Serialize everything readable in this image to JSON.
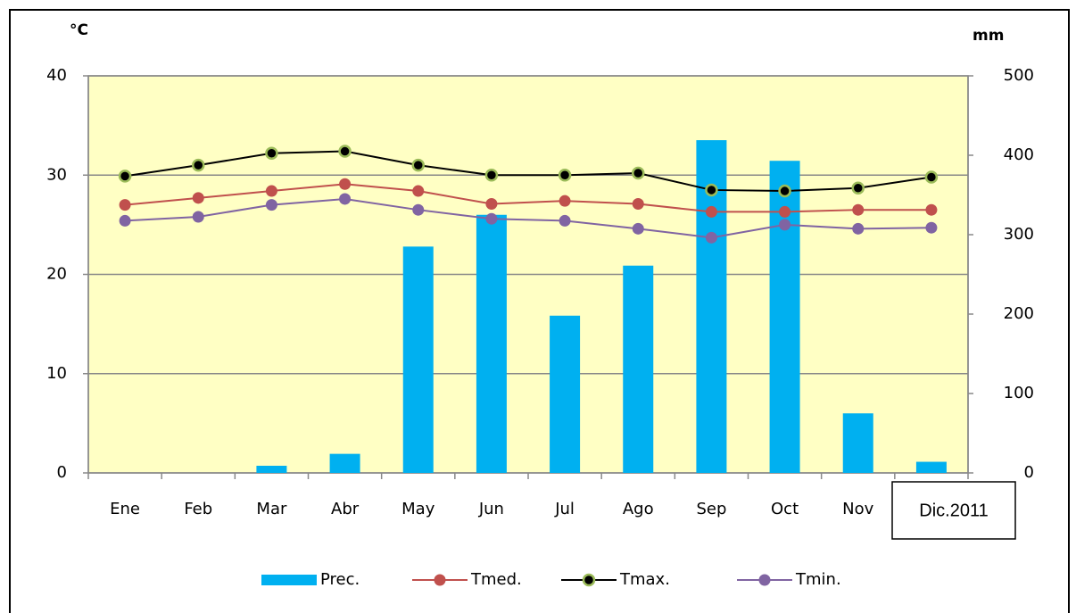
{
  "chart_data": {
    "type": "bar_line",
    "y_label": "°C",
    "y2_label": "mm",
    "categories": [
      "Ene",
      "Feb",
      "Mar",
      "Abr",
      "May",
      "Jun",
      "Jul",
      "Ago",
      "Sep",
      "Oct",
      "Nov",
      "Dic.2011"
    ],
    "ylim": [
      0,
      40
    ],
    "yticks": [
      0,
      10,
      20,
      30,
      40
    ],
    "y2lim": [
      0,
      500
    ],
    "y2ticks": [
      0,
      100,
      200,
      300,
      400,
      500
    ],
    "grid": true,
    "legend": "bottom",
    "series": [
      {
        "name": "Prec.",
        "kind": "bar",
        "axis": "y2",
        "color": "#00b0f0",
        "values": [
          0,
          0,
          9,
          24,
          285,
          325,
          198,
          261,
          419,
          393,
          75,
          14
        ]
      },
      {
        "name": "Tmed.",
        "kind": "line",
        "color": "#c0504d",
        "marker": "#c0504d",
        "values": [
          27,
          27.7,
          28.4,
          29.1,
          28.4,
          27.1,
          27.4,
          27.1,
          26.3,
          26.3,
          26.5,
          26.5
        ]
      },
      {
        "name": "Tmax.",
        "kind": "line",
        "color": "#000000",
        "marker": "#9bbb59",
        "values": [
          29.9,
          31,
          32.2,
          32.4,
          31,
          30,
          30,
          30.2,
          28.5,
          28.4,
          28.7,
          29.8
        ]
      },
      {
        "name": "Tmin.",
        "kind": "line",
        "color": "#8064a2",
        "marker": "#8064a2",
        "values": [
          25.4,
          25.8,
          27,
          27.6,
          26.5,
          25.6,
          25.4,
          24.6,
          23.7,
          25,
          24.6,
          24.7
        ]
      }
    ]
  }
}
